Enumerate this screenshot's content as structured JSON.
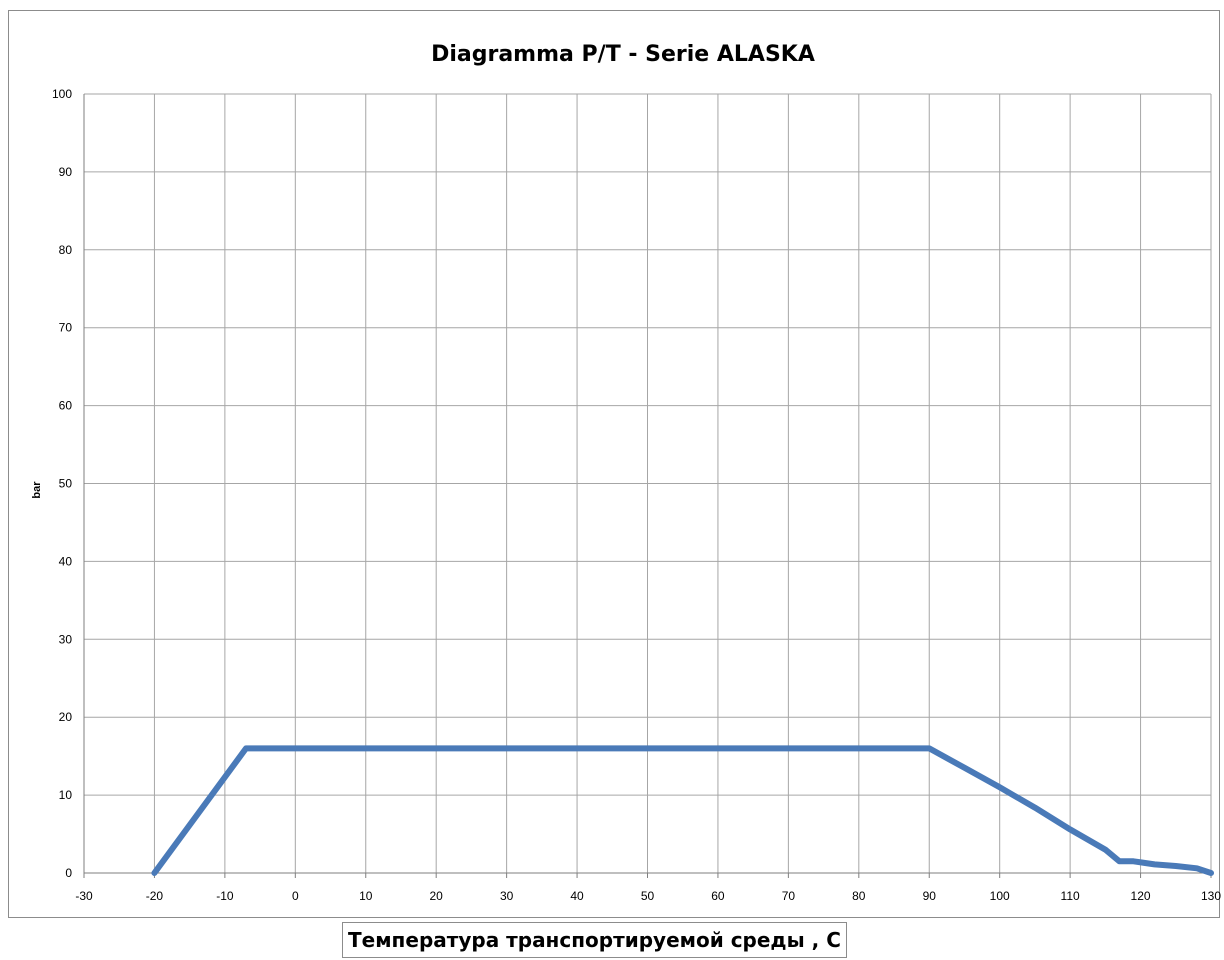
{
  "chart_data": {
    "type": "line",
    "title": "Diagramma P/T - Serie ALASKA",
    "xlabel": "Температура транспортируемой среды , С",
    "ylabel": "bar",
    "xlim": [
      -30,
      130
    ],
    "ylim": [
      0,
      100
    ],
    "x_ticks": [
      -30,
      -20,
      -10,
      0,
      10,
      20,
      30,
      40,
      50,
      60,
      70,
      80,
      90,
      100,
      110,
      120,
      130
    ],
    "y_ticks": [
      0,
      10,
      20,
      30,
      40,
      50,
      60,
      70,
      80,
      90,
      100
    ],
    "grid": true,
    "series": [
      {
        "color": "#4a7ab8",
        "x": [
          -20,
          -7,
          90,
          95,
          100,
          105,
          110,
          115,
          117,
          119,
          122,
          125,
          128,
          130
        ],
        "y": [
          0,
          16,
          16,
          13.5,
          11,
          8.4,
          5.6,
          3,
          1.5,
          1.5,
          1.1,
          0.9,
          0.6,
          0
        ]
      }
    ]
  }
}
